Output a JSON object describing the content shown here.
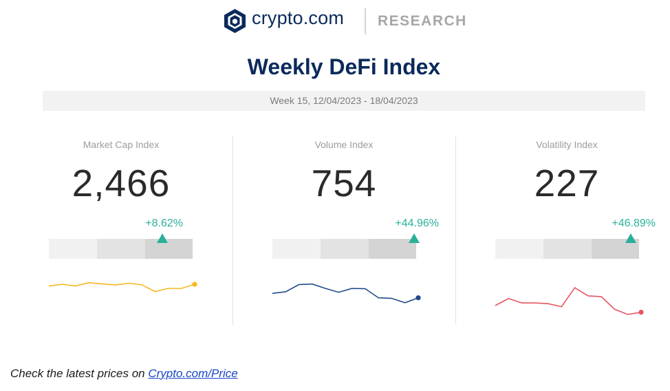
{
  "header": {
    "brand": "crypto.com",
    "section": "RESEARCH",
    "logo_color": "#0b2a5b"
  },
  "title": "Weekly DeFi Index",
  "week": "Week 15, 12/04/2023 - 18/04/2023",
  "panels": [
    {
      "label": "Market Cap Index",
      "value": "2,466",
      "change": "+8.62%",
      "trend": "up",
      "line_color": "#f5b81c",
      "sparkline": [
        0.42,
        0.5,
        0.42,
        0.58,
        0.52,
        0.47,
        0.55,
        0.48,
        0.15,
        0.3,
        0.3,
        0.5
      ]
    },
    {
      "label": "Volume Index",
      "value": "754",
      "change": "+44.96%",
      "trend": "up",
      "line_color": "#1f4a8a",
      "sparkline": [
        0.42,
        0.48,
        0.74,
        0.76,
        0.6,
        0.46,
        0.6,
        0.59,
        0.26,
        0.24,
        0.08,
        0.26
      ]
    },
    {
      "label": "Volatility Index",
      "value": "227",
      "change": "+46.89%",
      "trend": "up",
      "line_color": "#e65560",
      "sparkline": [
        0.28,
        0.47,
        0.35,
        0.35,
        0.33,
        0.25,
        0.76,
        0.54,
        0.52,
        0.18,
        0.04,
        0.1
      ]
    }
  ],
  "footer": {
    "text": "Check the latest prices on ",
    "link_text": "Crypto.com/Price"
  },
  "colors": {
    "accent": "#2ab09a",
    "title": "#0b2a5b"
  }
}
